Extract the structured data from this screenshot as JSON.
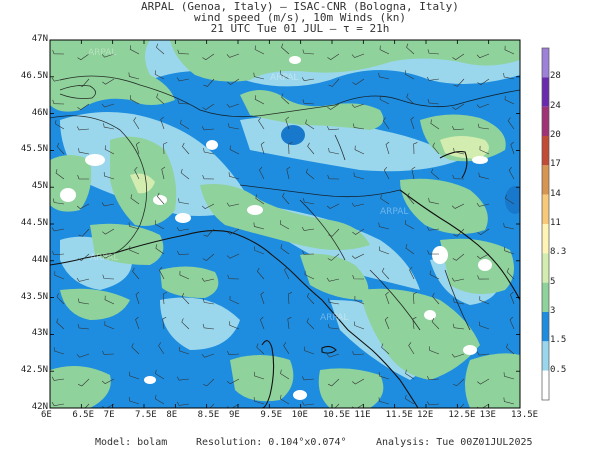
{
  "header": {
    "line1": "ARPAL (Genoa, Italy)  —  ISAC-CNR (Bologna, Italy)",
    "line2": "wind speed (m/s), 10m Winds (kn)",
    "line3": "21 UTC Tue 01 JUL  —  τ = 21h"
  },
  "axes": {
    "lat_labels": [
      "47N",
      "46.5N",
      "46N",
      "45.5N",
      "45N",
      "44.5N",
      "44N",
      "43.5N",
      "43N",
      "42.5N",
      "42N"
    ],
    "lon_labels": [
      "6E",
      "6.5E",
      "7E",
      "7.5E",
      "8E",
      "8.5E",
      "9E",
      "9.5E",
      "10E",
      "10.5E",
      "11E",
      "11.5E",
      "12E",
      "12.5E",
      "13E",
      "13.5E"
    ]
  },
  "colorbar": {
    "labels": [
      "28",
      "24",
      "20",
      "17",
      "14",
      "11",
      "8.3",
      "5",
      "3",
      "1.5",
      "0.5"
    ],
    "colors": [
      "#ffffff",
      "#9bd7ec",
      "#1e8de0",
      "#8fd29b",
      "#d3edb0",
      "#fff3b5",
      "#f7c979",
      "#d69550",
      "#c14b35",
      "#a03276",
      "#6a2ab0",
      "#9f80d8"
    ]
  },
  "watermark": "ARPAL",
  "footer": {
    "model": "Model: bolam",
    "resolution": "Resolution: 0.104°x0.074°",
    "analysis": "Analysis: Tue 00Z01JUL2025"
  }
}
